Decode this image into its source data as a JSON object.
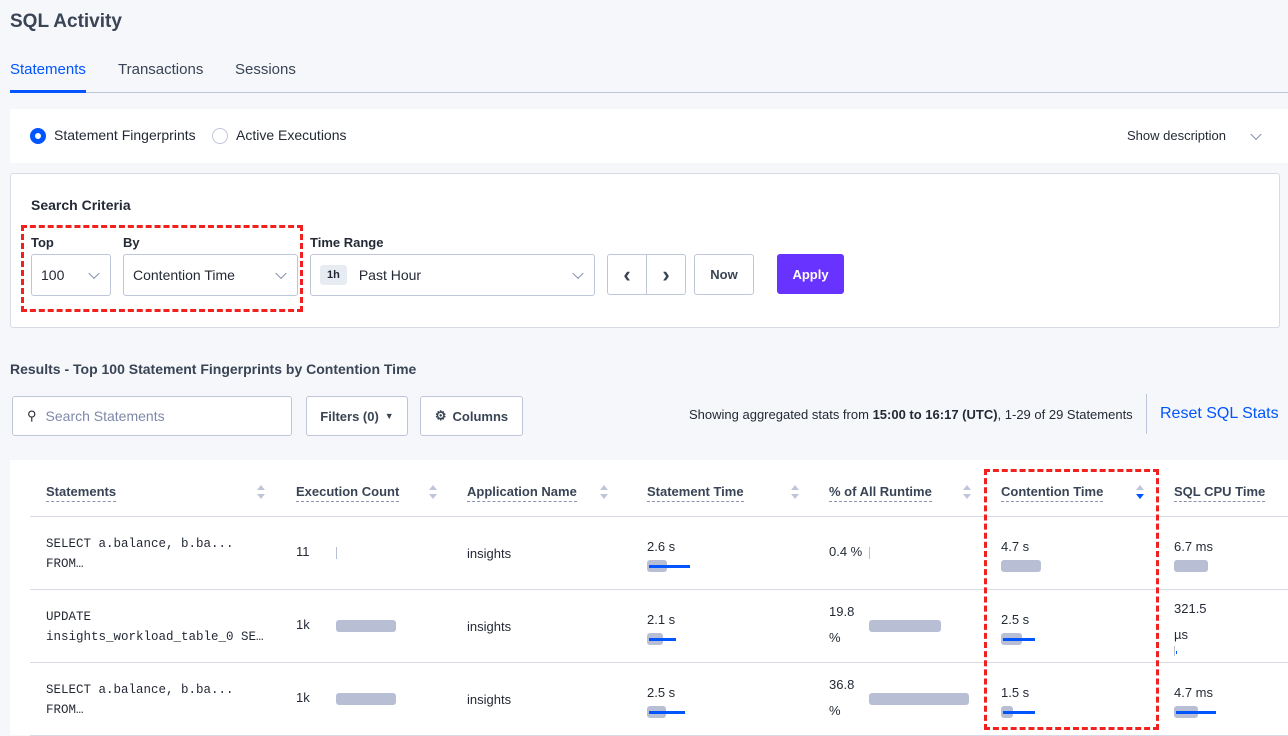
{
  "page_title": "SQL Activity",
  "tabs": [
    {
      "label": "Statements",
      "active": true
    },
    {
      "label": "Transactions"
    },
    {
      "label": "Sessions"
    }
  ],
  "view": {
    "options": [
      "Statement Fingerprints",
      "Active Executions"
    ],
    "selected": "Statement Fingerprints",
    "show_description": "Show description"
  },
  "search": {
    "title": "Search Criteria",
    "top_label": "Top",
    "top_value": "100",
    "by_label": "By",
    "by_value": "Contention Time",
    "time_range_label": "Time Range",
    "time_badge": "1h",
    "time_value": "Past Hour",
    "now": "Now",
    "apply": "Apply"
  },
  "results": {
    "title": "Results - Top 100 Statement Fingerprints by Contention Time",
    "search_placeholder": "Search Statements",
    "filters": "Filters (0)",
    "columns": "Columns",
    "summary_pre": "Showing aggregated stats from ",
    "summary_bold": "15:00 to 16:17 (UTC)",
    "summary_post": ", 1-29 of 29 Statements",
    "reset": "Reset SQL Stats"
  },
  "colors": {
    "accent": "#0055ff",
    "apply": "#6933ff",
    "highlight": "#f0211f"
  },
  "table": {
    "headers": [
      "Statements",
      "Execution Count",
      "Application Name",
      "Statement Time",
      "% of All Runtime",
      "Contention Time",
      "SQL CPU Time"
    ],
    "sorted_column": "Contention Time",
    "sort_direction": "descending",
    "rows": [
      {
        "statement": [
          "SELECT a.balance, b.ba...",
          "FROM…"
        ],
        "exec": "11",
        "exec_fill": 0,
        "app": "insights",
        "stmt_time": "2.6 s",
        "stmt_fill": 0.45,
        "stmt_dev": 0.9,
        "pct": [
          "0.4 %"
        ],
        "pct_fill": 0,
        "contention": "4.7 s",
        "cont_fill": 1,
        "cont_dev": 0,
        "cpu": [
          "6.7 ms"
        ],
        "cpu_fill": 0.85,
        "cpu_dev": 0
      },
      {
        "statement": [
          "UPDATE",
          "insights_workload_table_0 SE…"
        ],
        "exec": "1k",
        "exec_fill": 1,
        "app": "insights",
        "stmt_time": "2.1 s",
        "stmt_fill": 0.35,
        "stmt_dev": 0.6,
        "pct": [
          "19.8",
          "%"
        ],
        "pct_fill": 0.72,
        "contention": "2.5 s",
        "cont_fill": 0.52,
        "cont_dev": 0.8,
        "cpu": [
          "321.5",
          "µs"
        ],
        "cpu_fill": 0,
        "cpu_dev": 0.03
      },
      {
        "statement": [
          "SELECT a.balance, b.ba...",
          "FROM…"
        ],
        "exec": "1k",
        "exec_fill": 1,
        "app": "insights",
        "stmt_time": "2.5 s",
        "stmt_fill": 0.42,
        "stmt_dev": 0.8,
        "pct": [
          "36.8",
          "%"
        ],
        "pct_fill": 1,
        "contention": "1.5 s",
        "cont_fill": 0.3,
        "cont_dev": 0.8,
        "cpu": [
          "4.7 ms"
        ],
        "cpu_fill": 0.6,
        "cpu_dev": 1
      }
    ]
  }
}
